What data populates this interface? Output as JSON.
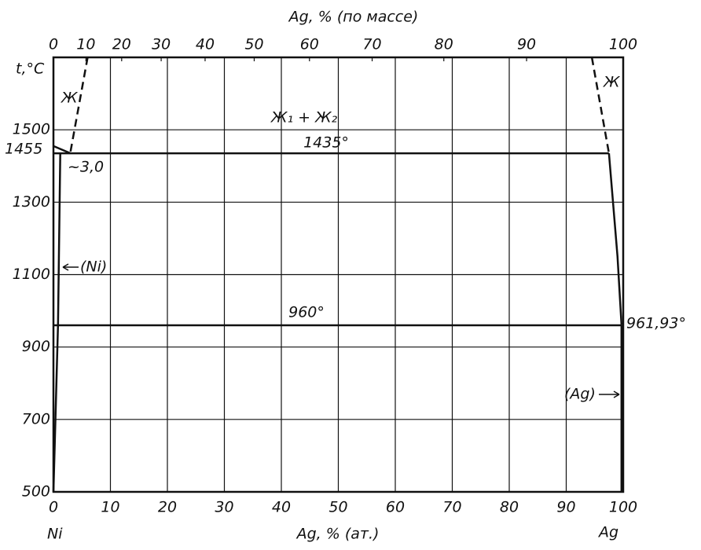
{
  "chart_data": {
    "type": "line",
    "title": "Ag, % (по массе)",
    "x_label": "Ag, % (ат.)",
    "y_label": "t,°C",
    "xlim": [
      0,
      100
    ],
    "ylim": [
      500,
      1700
    ],
    "xticks": [
      0,
      10,
      20,
      30,
      40,
      50,
      60,
      70,
      80,
      90,
      100
    ],
    "x2ticks": [
      0,
      10,
      20,
      30,
      40,
      50,
      60,
      70,
      80,
      90,
      100
    ],
    "yticks": [
      500,
      700,
      900,
      1100,
      1300,
      1500
    ],
    "grid": true,
    "color": "#111111",
    "series": [
      {
        "x": [
          3.0,
          6.0
        ],
        "values": [
          1440,
          1700
        ],
        "style": "dashed"
      },
      {
        "x": [
          0,
          3.0
        ],
        "values": [
          1455,
          1435
        ],
        "style": "solid"
      },
      {
        "x": [
          0,
          97.5
        ],
        "values": [
          1435,
          1435
        ],
        "style": "solid"
      },
      {
        "x": [
          94.5,
          97.5
        ],
        "values": [
          1700,
          1435
        ],
        "style": "dashed"
      },
      {
        "x": [
          97.5,
          99,
          99.7
        ],
        "values": [
          1435,
          1150,
          961.93
        ],
        "style": "solid"
      },
      {
        "x": [
          0,
          99.7
        ],
        "values": [
          960,
          960
        ],
        "style": "solid"
      },
      {
        "x": [
          0,
          0.8,
          1.2
        ],
        "values": [
          500,
          960,
          1435
        ],
        "style": "solid"
      },
      {
        "x": [
          99.7,
          99.7
        ],
        "values": [
          961.93,
          500
        ],
        "style": "solid"
      }
    ],
    "annotations": [
      "Ж",
      "Ж",
      "Ж₁ + Ж₂",
      "1435°",
      "~3,0",
      "(Ni)",
      "960°",
      "961,93°",
      "(Ag)",
      "1455",
      "Ni",
      "Ag"
    ]
  }
}
